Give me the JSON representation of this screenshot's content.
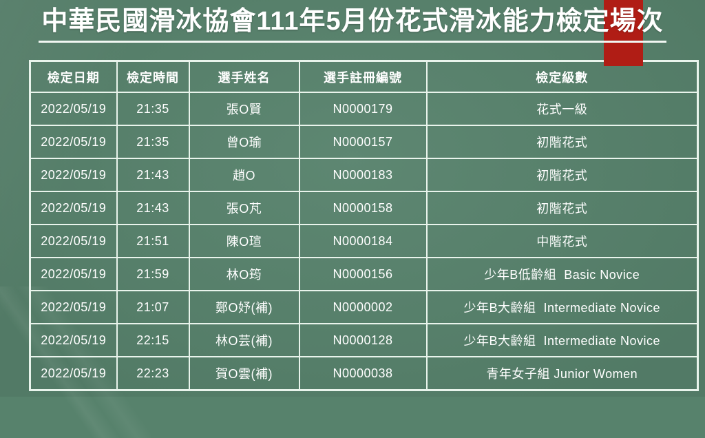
{
  "page": {
    "title": "中華民國滑冰協會111年5月份花式滑冰能力檢定場次",
    "colors": {
      "background_green": "#57826c",
      "accent_red": "#b01d15",
      "table_border": "#e9f4ec",
      "text": "#ffffff"
    }
  },
  "table": {
    "headers": [
      "檢定日期",
      "檢定時間",
      "選手姓名",
      "選手註冊編號",
      "檢定級數"
    ],
    "rows": [
      [
        "2022/05/19",
        "21:35",
        "張O賢",
        "N0000179",
        "花式一級"
      ],
      [
        "2022/05/19",
        "21:35",
        "曾O瑜",
        "N0000157",
        "初階花式"
      ],
      [
        "2022/05/19",
        "21:43",
        "趙O",
        "N0000183",
        "初階花式"
      ],
      [
        "2022/05/19",
        "21:43",
        "張O芃",
        "N0000158",
        "初階花式"
      ],
      [
        "2022/05/19",
        "21:51",
        "陳O瑄",
        "N0000184",
        "中階花式"
      ],
      [
        "2022/05/19",
        "21:59",
        "林O筠",
        "N0000156",
        "少年B低齡組  Basic Novice"
      ],
      [
        "2022/05/19",
        "21:07",
        "鄭O妤(補)",
        "N0000002",
        "少年B大齡組  Intermediate Novice"
      ],
      [
        "2022/05/19",
        "22:15",
        "林O芸(補)",
        "N0000128",
        "少年B大齡組  Intermediate Novice"
      ],
      [
        "2022/05/19",
        "22:23",
        "賀O雲(補)",
        "N0000038",
        "青年女子組 Junior Women"
      ]
    ],
    "cell_names": [
      "cell-date",
      "cell-time",
      "cell-player-name",
      "cell-registration-number",
      "cell-level"
    ]
  }
}
